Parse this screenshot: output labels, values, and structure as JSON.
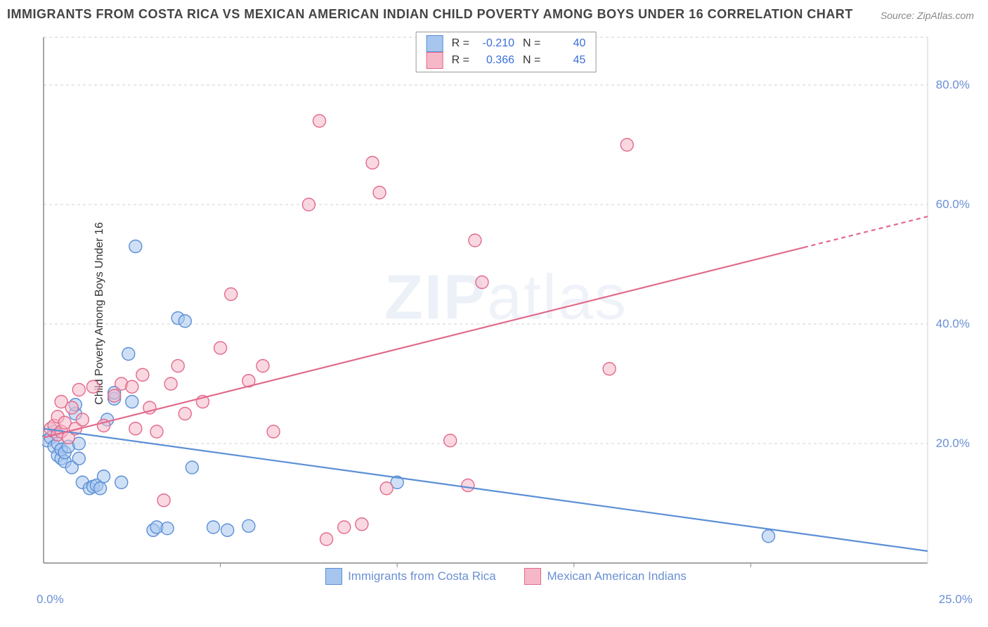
{
  "title": "IMMIGRANTS FROM COSTA RICA VS MEXICAN AMERICAN INDIAN CHILD POVERTY AMONG BOYS UNDER 16 CORRELATION CHART",
  "source_label": "Source: ",
  "source_value": "ZipAtlas.com",
  "watermark_main": "ZIP",
  "watermark_sub": "atlas",
  "y_axis_label": "Child Poverty Among Boys Under 16",
  "chart": {
    "type": "scatter-correlation",
    "xlim": [
      0,
      25
    ],
    "ylim": [
      0,
      88
    ],
    "x_tick_min_label": "0.0%",
    "x_tick_max_label": "25.0%",
    "y_ticks": [
      20,
      40,
      60,
      80
    ],
    "y_tick_labels": [
      "20.0%",
      "40.0%",
      "60.0%",
      "80.0%"
    ],
    "x_minor_ticks": [
      5,
      10,
      15,
      20
    ],
    "grid_color": "#d0d0d0",
    "axis_color": "#888888",
    "label_color": "#6a8fd4",
    "background_color": "#ffffff",
    "marker_radius": 9,
    "marker_stroke_width": 1.4,
    "regression_line_width": 2.2,
    "series": [
      {
        "id": "costa_rica",
        "label": "Immigrants from Costa Rica",
        "fill_color": "#a7c6ee",
        "stroke_color": "#5b8fd6",
        "fill_opacity": 0.55,
        "R": "-0.210",
        "N": "40",
        "regression": {
          "x1": 0,
          "y1": 22.5,
          "x2": 25,
          "y2": 2.0,
          "dash_from_x": null
        },
        "points": [
          [
            0.1,
            20.5
          ],
          [
            0.2,
            21.0
          ],
          [
            0.3,
            19.5
          ],
          [
            0.3,
            22.0
          ],
          [
            0.4,
            18.0
          ],
          [
            0.4,
            20.0
          ],
          [
            0.5,
            17.5
          ],
          [
            0.5,
            19.0
          ],
          [
            0.6,
            17.0
          ],
          [
            0.6,
            18.5
          ],
          [
            0.7,
            19.5
          ],
          [
            0.8,
            16.0
          ],
          [
            0.9,
            25.0
          ],
          [
            0.9,
            26.5
          ],
          [
            1.0,
            17.5
          ],
          [
            1.0,
            20.0
          ],
          [
            1.1,
            13.5
          ],
          [
            1.3,
            12.5
          ],
          [
            1.4,
            12.8
          ],
          [
            1.5,
            13.0
          ],
          [
            1.6,
            12.5
          ],
          [
            1.7,
            14.5
          ],
          [
            1.8,
            24.0
          ],
          [
            2.0,
            27.5
          ],
          [
            2.0,
            28.5
          ],
          [
            2.2,
            13.5
          ],
          [
            2.4,
            35.0
          ],
          [
            2.5,
            27.0
          ],
          [
            2.6,
            53.0
          ],
          [
            3.1,
            5.5
          ],
          [
            3.2,
            6.0
          ],
          [
            3.5,
            5.8
          ],
          [
            3.8,
            41.0
          ],
          [
            4.0,
            40.5
          ],
          [
            4.2,
            16.0
          ],
          [
            4.8,
            6.0
          ],
          [
            5.2,
            5.5
          ],
          [
            5.8,
            6.2
          ],
          [
            10.0,
            13.5
          ],
          [
            20.5,
            4.5
          ]
        ]
      },
      {
        "id": "mexican_indian",
        "label": "Mexican American Indians",
        "fill_color": "#f6b8c8",
        "stroke_color": "#e26a8b",
        "fill_opacity": 0.55,
        "R": "0.366",
        "N": "45",
        "regression": {
          "x1": 0,
          "y1": 21.0,
          "x2": 25,
          "y2": 58.0,
          "dash_from_x": 21.5
        },
        "points": [
          [
            0.2,
            22.5
          ],
          [
            0.3,
            23.0
          ],
          [
            0.4,
            21.5
          ],
          [
            0.4,
            24.5
          ],
          [
            0.5,
            22.0
          ],
          [
            0.5,
            27.0
          ],
          [
            0.6,
            23.5
          ],
          [
            0.7,
            21.0
          ],
          [
            0.8,
            26.0
          ],
          [
            0.9,
            22.5
          ],
          [
            1.0,
            29.0
          ],
          [
            1.1,
            24.0
          ],
          [
            1.4,
            29.5
          ],
          [
            1.7,
            23.0
          ],
          [
            2.0,
            28.0
          ],
          [
            2.2,
            30.0
          ],
          [
            2.5,
            29.5
          ],
          [
            2.6,
            22.5
          ],
          [
            2.8,
            31.5
          ],
          [
            3.0,
            26.0
          ],
          [
            3.2,
            22.0
          ],
          [
            3.4,
            10.5
          ],
          [
            3.6,
            30.0
          ],
          [
            3.8,
            33.0
          ],
          [
            4.0,
            25.0
          ],
          [
            4.5,
            27.0
          ],
          [
            5.0,
            36.0
          ],
          [
            5.3,
            45.0
          ],
          [
            5.8,
            30.5
          ],
          [
            6.2,
            33.0
          ],
          [
            6.5,
            22.0
          ],
          [
            7.5,
            60.0
          ],
          [
            7.8,
            74.0
          ],
          [
            8.0,
            4.0
          ],
          [
            8.5,
            6.0
          ],
          [
            9.0,
            6.5
          ],
          [
            9.3,
            67.0
          ],
          [
            9.5,
            62.0
          ],
          [
            9.7,
            12.5
          ],
          [
            11.5,
            20.5
          ],
          [
            12.0,
            13.0
          ],
          [
            12.2,
            54.0
          ],
          [
            12.4,
            47.0
          ],
          [
            16.0,
            32.5
          ],
          [
            16.5,
            70.0
          ]
        ]
      }
    ],
    "legend_top": {
      "R_label": "R",
      "N_label": "N",
      "equals": "="
    }
  }
}
